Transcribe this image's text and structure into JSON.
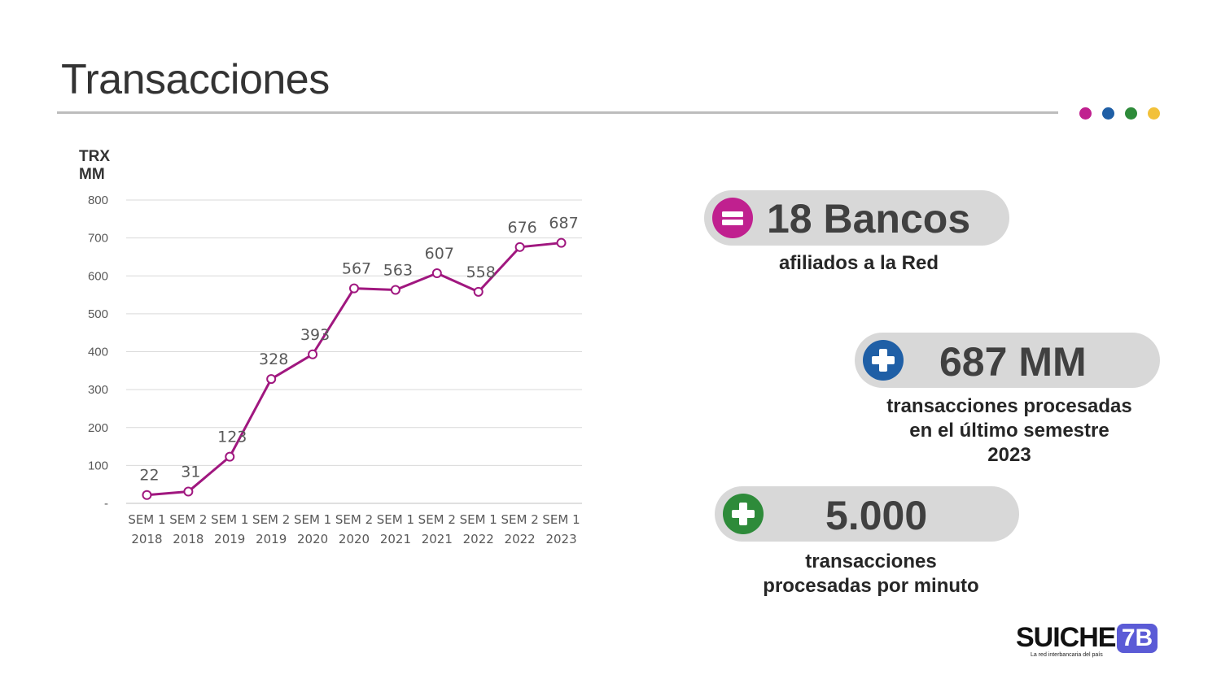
{
  "page": {
    "title": "Transacciones",
    "dot_colors": [
      "#c0208f",
      "#1f5fa6",
      "#2e8b3a",
      "#f2c13a"
    ]
  },
  "chart_data": {
    "type": "line",
    "ylabel_lines": [
      "TRX",
      "MM"
    ],
    "ylim": [
      0,
      800
    ],
    "yticks": [
      0,
      100,
      200,
      300,
      400,
      500,
      600,
      700,
      800
    ],
    "ytick_labels": [
      "-",
      "100",
      "200",
      "300",
      "400",
      "500",
      "600",
      "700",
      "800"
    ],
    "grid": true,
    "line_color": "#a0177f",
    "categories": [
      [
        "SEM 1",
        "2018"
      ],
      [
        "SEM 2",
        "2018"
      ],
      [
        "SEM 1",
        "2019"
      ],
      [
        "SEM 2",
        "2019"
      ],
      [
        "SEM 1",
        "2020"
      ],
      [
        "SEM 2",
        "2020"
      ],
      [
        "SEM 1",
        "2021"
      ],
      [
        "SEM 2",
        "2021"
      ],
      [
        "SEM 1",
        "2022"
      ],
      [
        "SEM 2",
        "2022"
      ],
      [
        "SEM 1",
        "2023"
      ]
    ],
    "values": [
      22,
      31,
      123,
      328,
      393,
      567,
      563,
      607,
      558,
      676,
      687
    ],
    "data_labels": [
      "22",
      "31",
      "123",
      "328",
      "393",
      "567",
      "563",
      "607",
      "558",
      "676",
      "687"
    ]
  },
  "stats": [
    {
      "value": "18 Bancos",
      "caption_lines": [
        "afiliados a la Red"
      ],
      "icon": "equals-circle-icon",
      "icon_color": "#c0208f"
    },
    {
      "value": "687 MM",
      "caption_lines": [
        "transacciones procesadas",
        "en el último semestre",
        "2023"
      ],
      "icon": "plus-circle-icon",
      "icon_color": "#1f5fa6"
    },
    {
      "value": "5.000",
      "caption_lines": [
        "transacciones",
        "procesadas por minuto"
      ],
      "icon": "plus-circle-icon",
      "icon_color": "#2e8b3a"
    }
  ],
  "logo": {
    "word": "SUICHE",
    "number": "7B",
    "tagline": "La red interbancaria del país"
  }
}
